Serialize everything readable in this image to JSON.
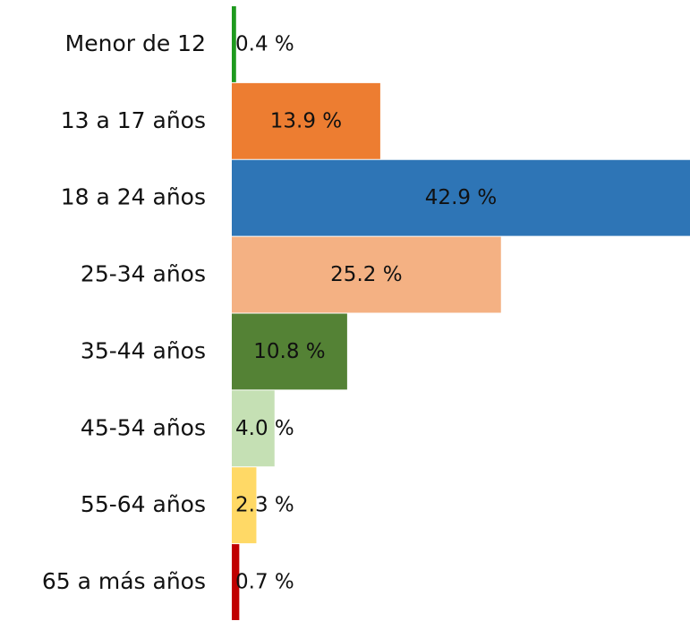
{
  "chart_data": {
    "type": "hbar",
    "categories": [
      "Menor de 12",
      "13 a 17 años",
      "18 a 24 años",
      "25-34 años",
      "35-44 años",
      "45-54 años",
      "55-64 años",
      "65 a más años"
    ],
    "values": [
      0.4,
      13.9,
      42.9,
      25.2,
      10.8,
      4.0,
      2.3,
      0.7
    ],
    "value_labels": [
      "0.4 %",
      "13.9 %",
      "42.9 %",
      "25.2 %",
      "10.8 %",
      "4.0 %",
      "2.3 %",
      "0.7 %"
    ],
    "colors": [
      "#1e9a1e",
      "#ed7d31",
      "#2e75b6",
      "#f4b183",
      "#548235",
      "#c5e0b4",
      "#ffd966",
      "#c00000"
    ]
  }
}
